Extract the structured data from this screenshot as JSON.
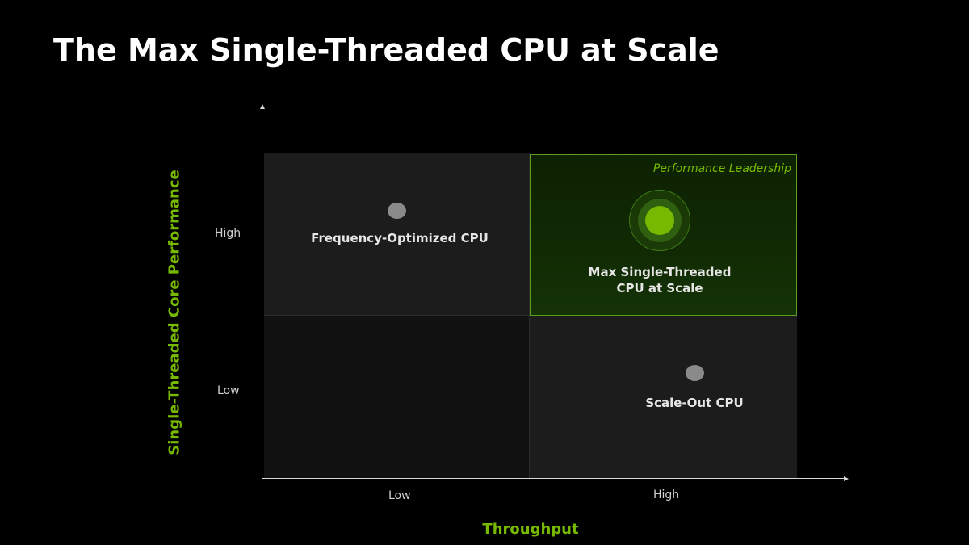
{
  "title": "The Max Single-Threaded CPU at Scale",
  "axes": {
    "x_title": "Throughput",
    "y_title": "Single-Threaded Core Performance",
    "x_ticks": [
      "Low",
      "High"
    ],
    "y_ticks": [
      "High",
      "Low"
    ]
  },
  "quadrants": {
    "top_left": {
      "label": "Frequency-Optimized CPU"
    },
    "top_right": {
      "tag": "Performance Leadership",
      "label_line1": "Max Single-Threaded",
      "label_line2": "CPU at Scale"
    },
    "bottom_left": {
      "label": ""
    },
    "bottom_right": {
      "label": "Scale-Out CPU"
    }
  },
  "colors": {
    "accent": "#76b900",
    "background": "#000000",
    "quadrant_fill": "#1c1c1c",
    "marker_gray": "#8a8a8a"
  }
}
